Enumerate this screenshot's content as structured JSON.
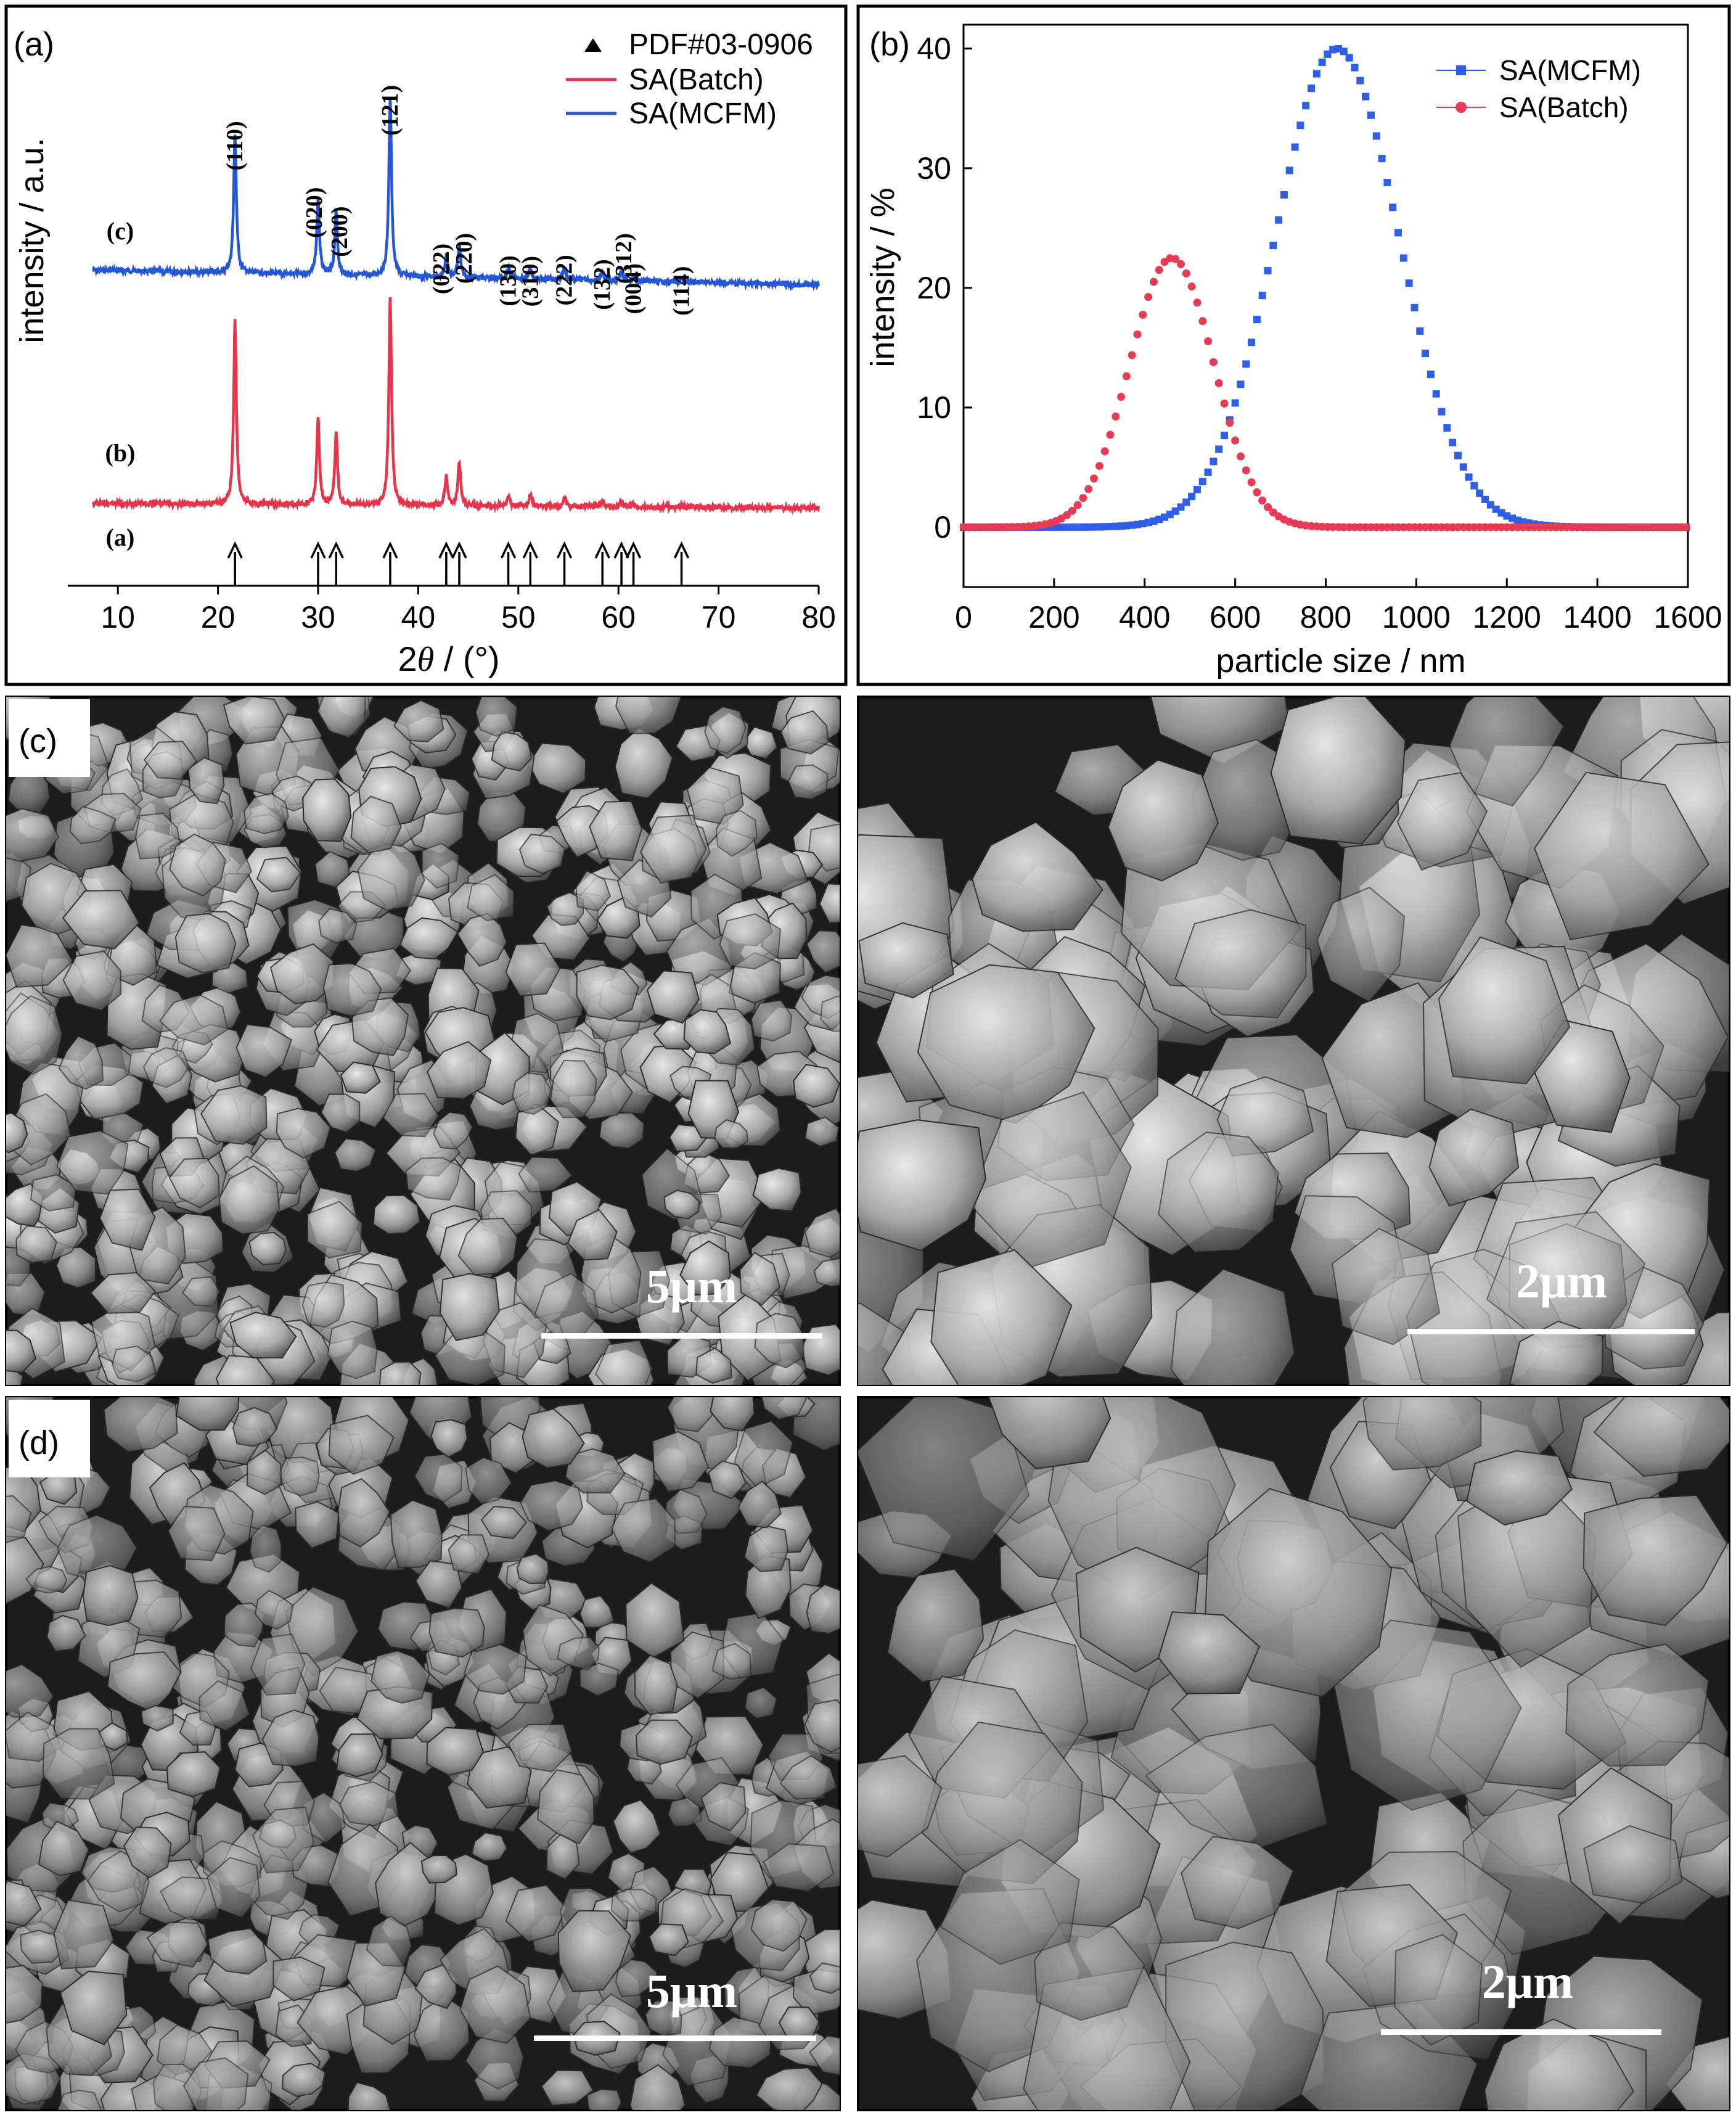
{
  "colors": {
    "xrd_batch": "#e8344a",
    "xrd_mcfm": "#2456d8",
    "dist_mcfm": "#2f5fe6",
    "dist_batch": "#e83a55",
    "frame": "#000000",
    "sem_bg": "#1c1c1c"
  },
  "panel_labels": {
    "a": "(a)",
    "b": "(b)",
    "c": "(c)",
    "d": "(d)"
  },
  "chart_data": [
    {
      "type": "line",
      "panel": "a",
      "xlabel_main": "2",
      "xlabel_theta": "θ",
      "xlabel_unit": " / (°)",
      "ylabel": "intensity / a.u.",
      "xlim": [
        5,
        80
      ],
      "xticks": [
        10,
        20,
        30,
        40,
        50,
        60,
        70,
        80
      ],
      "legend_position": "top-right",
      "legend": [
        {
          "label": "PDF#03-0906",
          "kind": "triangle",
          "color": "#000000"
        },
        {
          "label": "SA(Batch)",
          "kind": "line",
          "color": "#e8344a"
        },
        {
          "label": "SA(MCFM)",
          "kind": "line",
          "color": "#2456d8"
        }
      ],
      "trace_labels": [
        "(c)",
        "(b)",
        "(a)"
      ],
      "reference_peaks": [
        21.7,
        30.0,
        31.8,
        37.2,
        42.8,
        44.1,
        49.0,
        51.2,
        54.6,
        58.4,
        60.3,
        61.5,
        66.3
      ],
      "peak_labels": [
        {
          "hkl": "(110)",
          "x": 21.7
        },
        {
          "hkl": "(020)",
          "x": 30.0
        },
        {
          "hkl": "(200)",
          "x": 31.8
        },
        {
          "hkl": "(121)",
          "x": 37.2
        },
        {
          "hkl": "(022)",
          "x": 42.8
        },
        {
          "hkl": "(220)",
          "x": 44.1
        },
        {
          "hkl": "(130)",
          "x": 49.0
        },
        {
          "hkl": "(310)",
          "x": 51.2
        },
        {
          "hkl": "(222)",
          "x": 54.6
        },
        {
          "hkl": "(132)",
          "x": 58.4
        },
        {
          "hkl": "(312)",
          "x": 60.3
        },
        {
          "hkl": "(004)",
          "x": 61.5
        },
        {
          "hkl": "(114)",
          "x": 66.3
        }
      ],
      "series": [
        {
          "name": "SA(MCFM)",
          "trace": "(c)",
          "peaks": [
            [
              21.7,
              0.78
            ],
            [
              30.0,
              0.42
            ],
            [
              31.8,
              0.35
            ],
            [
              37.2,
              1.0
            ],
            [
              42.8,
              0.12
            ],
            [
              44.1,
              0.18
            ],
            [
              49.0,
              0.06
            ],
            [
              51.2,
              0.06
            ],
            [
              54.6,
              0.07
            ],
            [
              58.4,
              0.05
            ],
            [
              60.3,
              0.06
            ],
            [
              61.5,
              0.03
            ],
            [
              66.3,
              0.02
            ]
          ]
        },
        {
          "name": "SA(Batch)",
          "trace": "(b)",
          "peaks": [
            [
              21.7,
              0.88
            ],
            [
              30.0,
              0.42
            ],
            [
              31.8,
              0.34
            ],
            [
              37.2,
              1.0
            ],
            [
              42.8,
              0.14
            ],
            [
              44.1,
              0.21
            ],
            [
              49.0,
              0.05
            ],
            [
              51.2,
              0.06
            ],
            [
              54.6,
              0.05
            ],
            [
              58.4,
              0.03
            ],
            [
              60.3,
              0.03
            ],
            [
              61.5,
              0.02
            ],
            [
              66.3,
              0.01
            ]
          ]
        }
      ]
    },
    {
      "type": "scatter",
      "panel": "b",
      "xlabel": "particle size / nm",
      "ylabel": "intensity / %",
      "xlim": [
        0,
        1600
      ],
      "ylim": [
        -5,
        42
      ],
      "xticks": [
        0,
        200,
        400,
        600,
        800,
        1000,
        1200,
        1400,
        1600
      ],
      "yticks": [
        0,
        10,
        20,
        30,
        40
      ],
      "legend_position": "top-right",
      "series": [
        {
          "name": "SA(MCFM)",
          "marker": "square",
          "center": 825,
          "sigma": 137,
          "peak": 40.0,
          "x_range": [
            0,
            1600
          ],
          "step": 12
        },
        {
          "name": "SA(Batch)",
          "marker": "circle",
          "center": 460,
          "sigma": 93,
          "peak": 22.5,
          "x_range": [
            0,
            1600
          ],
          "step": 12
        }
      ]
    }
  ],
  "sem": {
    "c_left": {
      "scale": "5μm"
    },
    "c_right": {
      "scale": "2μm"
    },
    "d_left": {
      "scale": "5μm"
    },
    "d_right": {
      "scale": "2μm"
    }
  }
}
